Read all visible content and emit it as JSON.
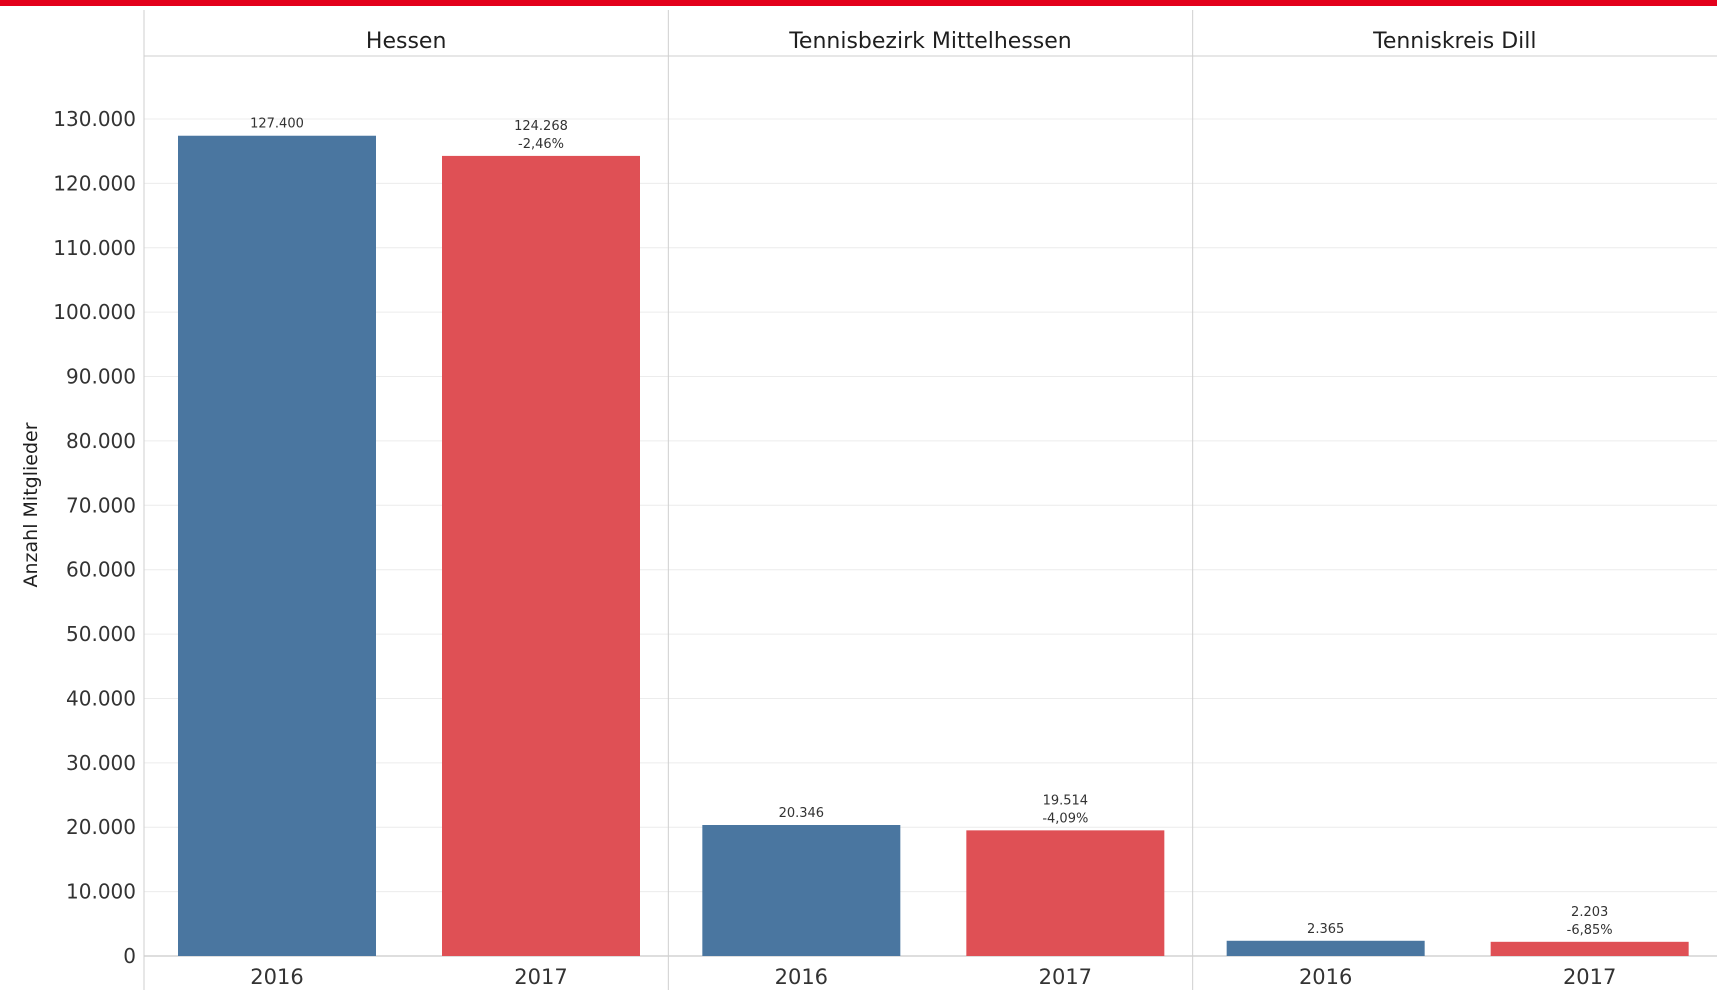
{
  "colors": {
    "accent_bar": "#e3001b",
    "series_2016": "#4a76a0",
    "series_2017": "#df5055"
  },
  "chart_data": {
    "type": "bar",
    "ylabel": "Anzahl Mitglieder",
    "ylim": [
      0,
      140000
    ],
    "yticks": [
      0,
      10000,
      20000,
      30000,
      40000,
      50000,
      60000,
      70000,
      80000,
      90000,
      100000,
      110000,
      120000,
      130000
    ],
    "ytick_labels": [
      "0",
      "10.000",
      "20.000",
      "30.000",
      "40.000",
      "50.000",
      "60.000",
      "70.000",
      "80.000",
      "90.000",
      "100.000",
      "110.000",
      "120.000",
      "130.000"
    ],
    "grid": true,
    "categories": [
      "2016",
      "2017"
    ],
    "panels": [
      {
        "title": "Hessen",
        "bars": [
          {
            "category": "2016",
            "value": 127400,
            "label": "127.400",
            "change": ""
          },
          {
            "category": "2017",
            "value": 124268,
            "label": "124.268",
            "change": "-2,46%"
          }
        ]
      },
      {
        "title": "Tennisbezirk Mittelhessen",
        "bars": [
          {
            "category": "2016",
            "value": 20346,
            "label": "20.346",
            "change": ""
          },
          {
            "category": "2017",
            "value": 19514,
            "label": "19.514",
            "change": "-4,09%"
          }
        ]
      },
      {
        "title": "Tenniskreis Dill",
        "bars": [
          {
            "category": "2016",
            "value": 2365,
            "label": "2.365",
            "change": ""
          },
          {
            "category": "2017",
            "value": 2203,
            "label": "2.203",
            "change": "-6,85%"
          }
        ]
      }
    ]
  }
}
